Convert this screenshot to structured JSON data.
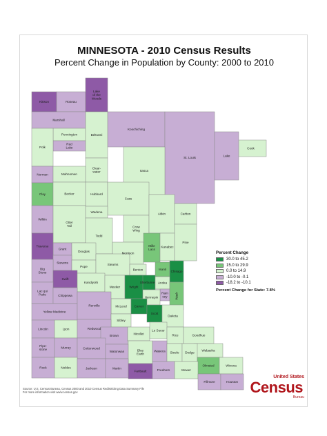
{
  "title": "MINNESOTA - 2010 Census Results",
  "subtitle": "Percent Change in Population by County:  2000 to 2010",
  "legend": {
    "title": "Percent Change",
    "classes": [
      {
        "label": "30.0 to 45.2",
        "color": "#1a8f45"
      },
      {
        "label": "15.0 to 29.9",
        "color": "#78c679"
      },
      {
        "label": "0.0 to 14.9",
        "color": "#d6f2d0"
      },
      {
        "label": "-10.0 to -0.1",
        "color": "#c7aed4"
      },
      {
        "label": "-18.2 to -10.1",
        "color": "#8e5aa6"
      }
    ],
    "state_change_label": "Percent Change for State:",
    "state_change_value": "7.8%"
  },
  "source": {
    "line1": "Source:  U.S. Census Bureau, Census 2000 and 2010 Census Redistricting Data Summary File",
    "line2": "For more information visit www.census.gov"
  },
  "logo": {
    "top": "United States",
    "main": "Census",
    "bottom": "Bureau"
  },
  "counties": [
    {
      "name": "Kittson",
      "class": 4
    },
    {
      "name": "Roseau",
      "class": 3
    },
    {
      "name": "Lake of the Woods",
      "class": 4
    },
    {
      "name": "Marshall",
      "class": 3
    },
    {
      "name": "Koochiching",
      "class": 3
    },
    {
      "name": "Pennington",
      "class": 2
    },
    {
      "name": "Red Lake",
      "class": 3
    },
    {
      "name": "Beltrami",
      "class": 2
    },
    {
      "name": "Cook",
      "class": 2
    },
    {
      "name": "Polk",
      "class": 2
    },
    {
      "name": "Clearwater",
      "class": 2
    },
    {
      "name": "St. Louis",
      "class": 3
    },
    {
      "name": "Lake",
      "class": 3
    },
    {
      "name": "Norman",
      "class": 3
    },
    {
      "name": "Mahnomen",
      "class": 2
    },
    {
      "name": "Itasca",
      "class": 2
    },
    {
      "name": "Hubbard",
      "class": 2
    },
    {
      "name": "Cass",
      "class": 2
    },
    {
      "name": "Clay",
      "class": 1
    },
    {
      "name": "Becker",
      "class": 2
    },
    {
      "name": "Wadena",
      "class": 2
    },
    {
      "name": "Crow Wing",
      "class": 2
    },
    {
      "name": "Aitkin",
      "class": 2
    },
    {
      "name": "Carlton",
      "class": 2
    },
    {
      "name": "Wilkin",
      "class": 3
    },
    {
      "name": "Otter Tail",
      "class": 2
    },
    {
      "name": "Todd",
      "class": 2
    },
    {
      "name": "Morrison",
      "class": 2
    },
    {
      "name": "Mille Lacs",
      "class": 1
    },
    {
      "name": "Kanabec",
      "class": 2
    },
    {
      "name": "Pine",
      "class": 2
    },
    {
      "name": "Grant",
      "class": 3
    },
    {
      "name": "Douglas",
      "class": 2
    },
    {
      "name": "Traverse",
      "class": 4
    },
    {
      "name": "Stevens",
      "class": 3
    },
    {
      "name": "Pope",
      "class": 2
    },
    {
      "name": "Stearns",
      "class": 2
    },
    {
      "name": "Benton",
      "class": 2
    },
    {
      "name": "Isanti",
      "class": 1
    },
    {
      "name": "Chisago",
      "class": 0
    },
    {
      "name": "Sherburne",
      "class": 0
    },
    {
      "name": "Big Stone",
      "class": 3
    },
    {
      "name": "Swift",
      "class": 4
    },
    {
      "name": "Kandiyohi",
      "class": 2
    },
    {
      "name": "Meeker",
      "class": 2
    },
    {
      "name": "Wright",
      "class": 0
    },
    {
      "name": "Anoka",
      "class": 2
    },
    {
      "name": "Ramsey",
      "class": 3
    },
    {
      "name": "Washington",
      "class": 1
    },
    {
      "name": "Lac qui Parle",
      "class": 3
    },
    {
      "name": "Chippewa",
      "class": 3
    },
    {
      "name": "Hennepin",
      "class": 2
    },
    {
      "name": "McLeod",
      "class": 2
    },
    {
      "name": "Carver",
      "class": 0
    },
    {
      "name": "Yellow Medicine",
      "class": 3
    },
    {
      "name": "Renville",
      "class": 3
    },
    {
      "name": "Sibley",
      "class": 2
    },
    {
      "name": "Scott",
      "class": 0
    },
    {
      "name": "Dakota",
      "class": 2
    },
    {
      "name": "Lincoln",
      "class": 3
    },
    {
      "name": "Lyon",
      "class": 2
    },
    {
      "name": "Redwood",
      "class": 3
    },
    {
      "name": "Brown",
      "class": 3
    },
    {
      "name": "Nicollet",
      "class": 2
    },
    {
      "name": "Le Sueur",
      "class": 2
    },
    {
      "name": "Rice",
      "class": 2
    },
    {
      "name": "Goodhue",
      "class": 2
    },
    {
      "name": "Wabasha",
      "class": 2
    },
    {
      "name": "Pipestone",
      "class": 3
    },
    {
      "name": "Murray",
      "class": 3
    },
    {
      "name": "Cottonwood",
      "class": 3
    },
    {
      "name": "Watonwan",
      "class": 3
    },
    {
      "name": "Blue Earth",
      "class": 2
    },
    {
      "name": "Waseca",
      "class": 3
    },
    {
      "name": "Steele",
      "class": 2
    },
    {
      "name": "Dodge",
      "class": 2
    },
    {
      "name": "Olmsted",
      "class": 1
    },
    {
      "name": "Winona",
      "class": 2
    },
    {
      "name": "Rock",
      "class": 3
    },
    {
      "name": "Nobles",
      "class": 2
    },
    {
      "name": "Jackson",
      "class": 3
    },
    {
      "name": "Martin",
      "class": 3
    },
    {
      "name": "Faribault",
      "class": 4
    },
    {
      "name": "Freeborn",
      "class": 3
    },
    {
      "name": "Mower",
      "class": 2
    },
    {
      "name": "Fillmore",
      "class": 3
    },
    {
      "name": "Houston",
      "class": 3
    }
  ]
}
